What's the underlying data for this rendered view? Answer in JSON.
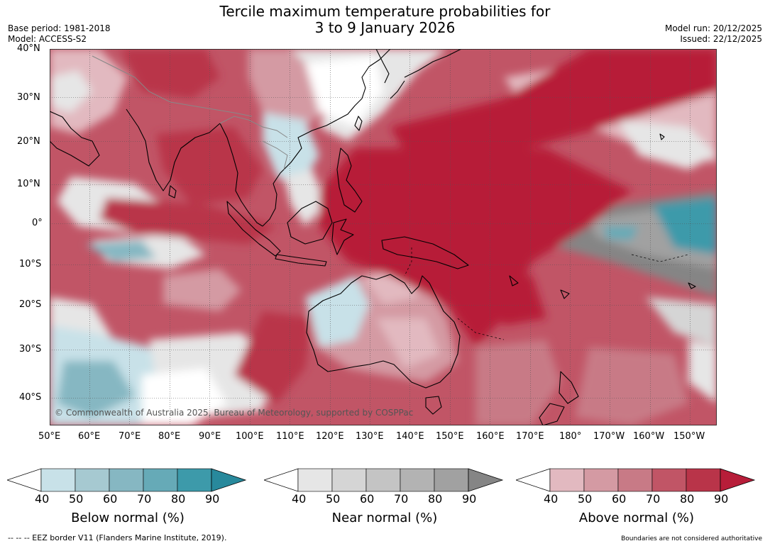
{
  "header": {
    "title_line1": "Tercile maximum temperature probabilities for",
    "title_line2": "3 to 9 January 2026",
    "base_period": "Base period: 1981-2018",
    "model": "Model: ACCESS-S2",
    "model_run": "Model run: 20/12/2025",
    "issued": "Issued: 22/12/2025"
  },
  "map": {
    "lat_labels": [
      "40°N",
      "30°N",
      "20°N",
      "10°N",
      "0°",
      "10°S",
      "20°S",
      "30°S",
      "40°S"
    ],
    "lon_labels": [
      "50°E",
      "60°E",
      "70°E",
      "80°E",
      "90°E",
      "100°E",
      "110°E",
      "120°E",
      "130°E",
      "140°E",
      "150°E",
      "160°E",
      "170°E",
      "180°",
      "170°W",
      "160°W",
      "150°W"
    ],
    "copyright": "© Commonwealth of Australia 2025, Bureau of Meteorology, supported by COSPPac"
  },
  "colorbars": [
    {
      "label": "Below normal (%)",
      "ticks": [
        "40",
        "50",
        "60",
        "70",
        "80",
        "90"
      ],
      "colors": [
        "#c8e1e8",
        "#a6c9d1",
        "#86b7c2",
        "#66aab7",
        "#3d9aaa",
        "#28899c"
      ]
    },
    {
      "label": "Near normal (%)",
      "ticks": [
        "40",
        "50",
        "60",
        "70",
        "80",
        "90"
      ],
      "colors": [
        "#e6e6e6",
        "#d5d5d5",
        "#c4c4c4",
        "#b3b3b3",
        "#a1a1a1",
        "#858585"
      ]
    },
    {
      "label": "Above normal (%)",
      "ticks": [
        "40",
        "50",
        "60",
        "70",
        "80",
        "90"
      ],
      "colors": [
        "#e2b9c0",
        "#d49aa3",
        "#c87a86",
        "#c15566",
        "#b93449",
        "#b71d39"
      ]
    }
  ],
  "footer": {
    "eez_note": "--  --  -- EEZ border V11 (Flanders Marine Institute, 2019).",
    "boundaries_note": "Boundaries are not considered authoritative"
  }
}
